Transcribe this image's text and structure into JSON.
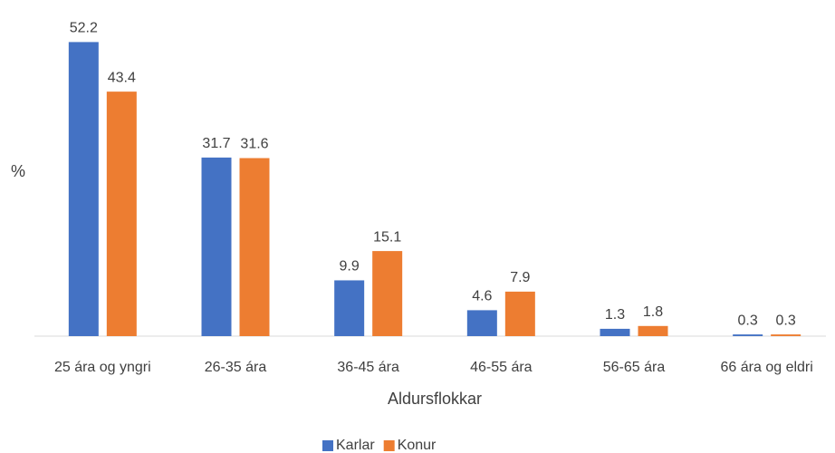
{
  "chart_data": {
    "type": "bar",
    "x_label": "Aldursflokkar",
    "y_label": "%",
    "categories": [
      "25 ára og yngri",
      "26-35 ára",
      "36-45 ára",
      "46-55 ára",
      "56-65 ára",
      "66 ára og eldri"
    ],
    "series": [
      {
        "name": "Karlar",
        "color": "#4472c4",
        "values": [
          52.2,
          31.7,
          9.9,
          4.6,
          1.3,
          0.3
        ]
      },
      {
        "name": "Konur",
        "color": "#ed7d31",
        "values": [
          43.4,
          31.6,
          15.1,
          7.9,
          1.8,
          0.3
        ]
      }
    ],
    "ylim": [
      0,
      55
    ],
    "legend": "bottom"
  }
}
